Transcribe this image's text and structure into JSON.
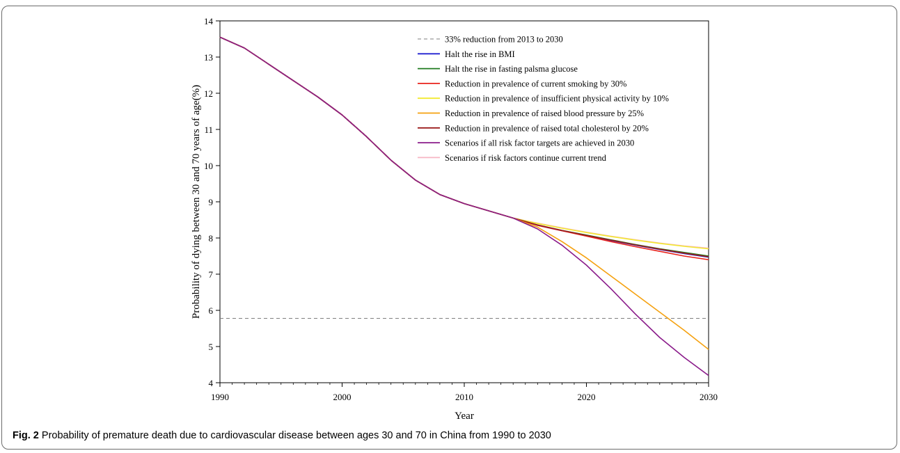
{
  "caption": {
    "label": "Fig. 2",
    "text": "Probability of premature death due to cardiovascular disease between ages 30 and 70 in China from 1990 to 2030"
  },
  "chart_data": {
    "type": "line",
    "xlabel": "Year",
    "ylabel": "Probability of dying between 30 and 70 years of age(%)",
    "xlim": [
      1990,
      2030
    ],
    "ylim": [
      4,
      14
    ],
    "xticks": [
      1990,
      2000,
      2010,
      2020,
      2030
    ],
    "yticks": [
      4,
      5,
      6,
      7,
      8,
      9,
      10,
      11,
      12,
      13,
      14
    ],
    "legend_position": "top-right, inside plot",
    "reference_line": {
      "name": "33% reduction from 2013 to 2030",
      "y": 5.78,
      "color": "#7f7f7f",
      "style": "dashed"
    },
    "series": [
      {
        "name": "Halt the rise in BMI",
        "color": "#2020d0",
        "x": [
          1990,
          1992,
          1994,
          1996,
          1998,
          2000,
          2002,
          2004,
          2006,
          2008,
          2010,
          2012,
          2014,
          2016,
          2018,
          2020,
          2022,
          2024,
          2026,
          2028,
          2030
        ],
        "y": [
          13.55,
          13.25,
          12.8,
          12.35,
          11.9,
          11.4,
          10.8,
          10.15,
          9.6,
          9.2,
          8.95,
          8.75,
          8.55,
          8.35,
          8.2,
          8.07,
          7.93,
          7.8,
          7.68,
          7.57,
          7.47
        ]
      },
      {
        "name": "Halt the rise in fasting palsma glucose",
        "color": "#1e7a1e",
        "x": [
          1990,
          1992,
          1994,
          1996,
          1998,
          2000,
          2002,
          2004,
          2006,
          2008,
          2010,
          2012,
          2014,
          2016,
          2018,
          2020,
          2022,
          2024,
          2026,
          2028,
          2030
        ],
        "y": [
          13.55,
          13.25,
          12.8,
          12.35,
          11.9,
          11.4,
          10.8,
          10.15,
          9.6,
          9.2,
          8.95,
          8.75,
          8.55,
          8.36,
          8.21,
          8.08,
          7.95,
          7.82,
          7.7,
          7.6,
          7.5
        ]
      },
      {
        "name": "Reduction in prevalence of current smoking by 30%",
        "color": "#e8231c",
        "x": [
          1990,
          1992,
          1994,
          1996,
          1998,
          2000,
          2002,
          2004,
          2006,
          2008,
          2010,
          2012,
          2014,
          2016,
          2018,
          2020,
          2022,
          2024,
          2026,
          2028,
          2030
        ],
        "y": [
          13.55,
          13.25,
          12.8,
          12.35,
          11.9,
          11.4,
          10.8,
          10.15,
          9.6,
          9.2,
          8.95,
          8.75,
          8.55,
          8.35,
          8.2,
          8.05,
          7.9,
          7.76,
          7.63,
          7.5,
          7.4
        ]
      },
      {
        "name": "Reduction in prevalence of insufficient physical activity by 10%",
        "color": "#f2ea30",
        "x": [
          1990,
          1992,
          1994,
          1996,
          1998,
          2000,
          2002,
          2004,
          2006,
          2008,
          2010,
          2012,
          2014,
          2016,
          2018,
          2020,
          2022,
          2024,
          2026,
          2028,
          2030
        ],
        "y": [
          13.55,
          13.25,
          12.8,
          12.35,
          11.9,
          11.4,
          10.8,
          10.15,
          9.6,
          9.2,
          8.95,
          8.75,
          8.55,
          8.4,
          8.27,
          8.15,
          8.04,
          7.94,
          7.85,
          7.77,
          7.7
        ]
      },
      {
        "name": "Reduction in prevalence of raised blood pressure by 25%",
        "color": "#f5a10f",
        "x": [
          1990,
          1992,
          1994,
          1996,
          1998,
          2000,
          2002,
          2004,
          2006,
          2008,
          2010,
          2012,
          2014,
          2016,
          2018,
          2020,
          2022,
          2024,
          2026,
          2028,
          2030
        ],
        "y": [
          13.55,
          13.25,
          12.8,
          12.35,
          11.9,
          11.4,
          10.8,
          10.15,
          9.6,
          9.2,
          8.95,
          8.75,
          8.55,
          8.3,
          7.9,
          7.45,
          6.95,
          6.45,
          5.95,
          5.45,
          4.92
        ]
      },
      {
        "name": "Reduction in prevalence of raised total cholesterol by 20%",
        "color": "#9b1c1c",
        "x": [
          1990,
          1992,
          1994,
          1996,
          1998,
          2000,
          2002,
          2004,
          2006,
          2008,
          2010,
          2012,
          2014,
          2016,
          2018,
          2020,
          2022,
          2024,
          2026,
          2028,
          2030
        ],
        "y": [
          13.55,
          13.25,
          12.8,
          12.35,
          11.9,
          11.4,
          10.8,
          10.15,
          9.6,
          9.2,
          8.95,
          8.75,
          8.55,
          8.36,
          8.21,
          8.07,
          7.94,
          7.81,
          7.69,
          7.58,
          7.48
        ]
      },
      {
        "name": "Scenarios if all risk factor targets are achieved in 2030",
        "color": "#8a1b8a",
        "x": [
          1990,
          1992,
          1994,
          1996,
          1998,
          2000,
          2002,
          2004,
          2006,
          2008,
          2010,
          2012,
          2014,
          2016,
          2018,
          2020,
          2022,
          2024,
          2026,
          2028,
          2030
        ],
        "y": [
          13.55,
          13.25,
          12.8,
          12.35,
          11.9,
          11.4,
          10.8,
          10.15,
          9.6,
          9.2,
          8.95,
          8.75,
          8.55,
          8.25,
          7.8,
          7.25,
          6.6,
          5.9,
          5.25,
          4.7,
          4.2
        ]
      },
      {
        "name": "Scenarios if risk factors continue current trend",
        "color": "#f7b6c3",
        "x": [
          1990,
          1992,
          1994,
          1996,
          1998,
          2000,
          2002,
          2004,
          2006,
          2008,
          2010,
          2012,
          2014,
          2016,
          2018,
          2020,
          2022,
          2024,
          2026,
          2028,
          2030
        ],
        "y": [
          13.55,
          13.25,
          12.8,
          12.35,
          11.9,
          11.4,
          10.8,
          10.15,
          9.6,
          9.2,
          8.95,
          8.75,
          8.55,
          8.41,
          8.28,
          8.16,
          8.05,
          7.95,
          7.86,
          7.78,
          7.72
        ]
      }
    ]
  }
}
